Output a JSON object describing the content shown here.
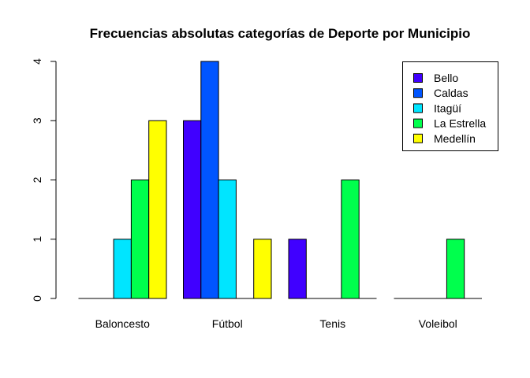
{
  "chart_data": {
    "type": "bar",
    "title": "Frecuencias absolutas categorías de Deporte por Municipio",
    "xlabel": "",
    "ylabel": "",
    "categories": [
      "Baloncesto",
      "Fútbol",
      "Tenis",
      "Voleibol"
    ],
    "series": [
      {
        "name": "Bello",
        "color": "#4000FF",
        "values": [
          0,
          3,
          1,
          0
        ]
      },
      {
        "name": "Caldas",
        "color": "#0055FF",
        "values": [
          0,
          4,
          0,
          0
        ]
      },
      {
        "name": "Itagüí",
        "color": "#00E5FF",
        "values": [
          1,
          2,
          0,
          0
        ]
      },
      {
        "name": "La Estrella",
        "color": "#00FF4D",
        "values": [
          2,
          0,
          2,
          1
        ]
      },
      {
        "name": "Medellín",
        "color": "#FFFF00",
        "values": [
          3,
          1,
          0,
          0
        ]
      }
    ],
    "ylim": [
      0,
      4
    ],
    "yticks": [
      "0",
      "1",
      "2",
      "3",
      "4"
    ],
    "grid": false,
    "legend_position": "top-right"
  }
}
